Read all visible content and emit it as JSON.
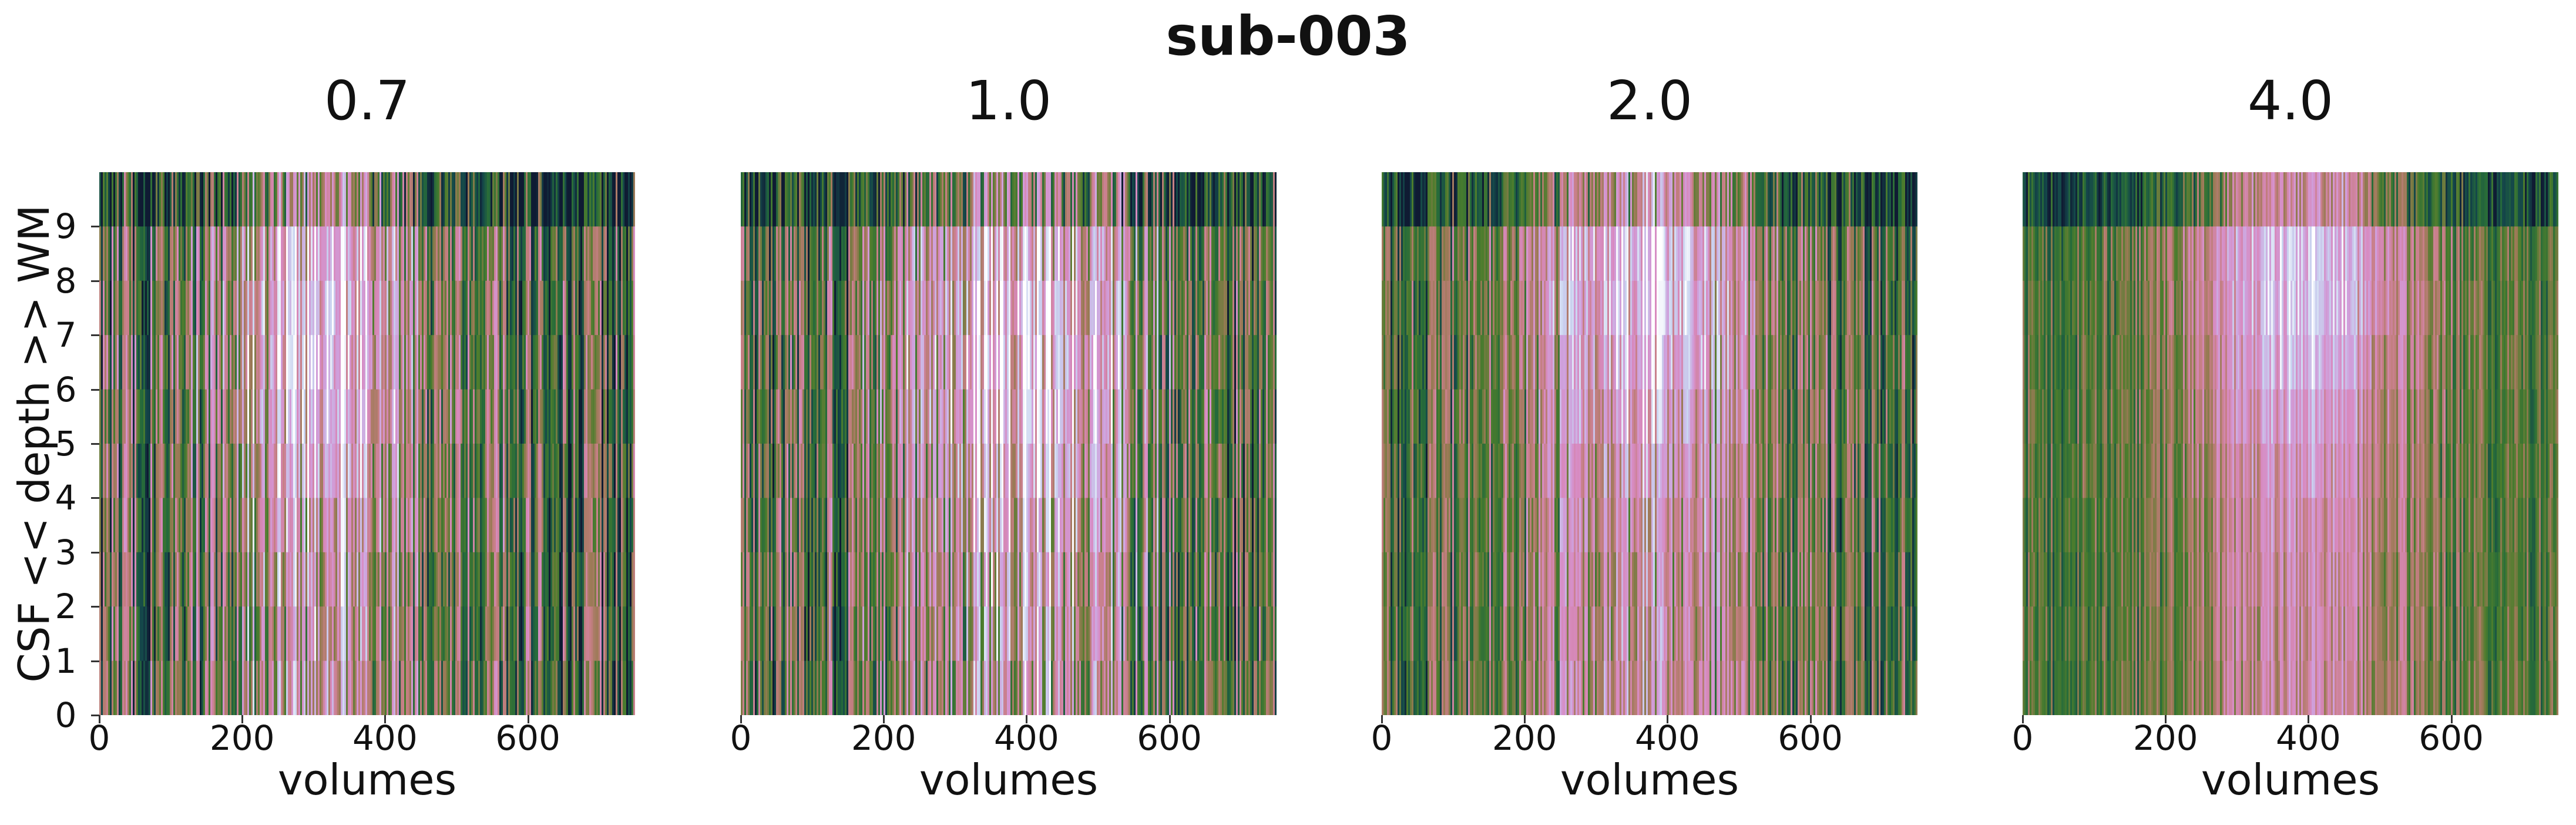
{
  "figure": {
    "title": "sub-003"
  },
  "chart_data": [
    {
      "type": "heatmap",
      "title": "0.7",
      "xlabel": "volumes",
      "ylabel": "CSF << depth >> WM",
      "xlim": [
        0,
        750
      ],
      "ylim": [
        0,
        10
      ],
      "xticks": [
        "0",
        "200",
        "400",
        "600"
      ],
      "yticks": [
        "0",
        "1",
        "2",
        "3",
        "4",
        "5",
        "6",
        "7",
        "8",
        "9"
      ],
      "n_volumes": 750,
      "n_depths": 10,
      "colormap": "cubehelix-like (dark navy → green → pink → lavender → white)",
      "activation_profile": {
        "peak_volume": 310,
        "peak_width": 90,
        "peak_depth": 7,
        "noise_level": "high"
      }
    },
    {
      "type": "heatmap",
      "title": "1.0",
      "xlabel": "volumes",
      "xlim": [
        0,
        750
      ],
      "ylim": [
        0,
        10
      ],
      "xticks": [
        "0",
        "200",
        "400",
        "600"
      ],
      "n_volumes": 750,
      "n_depths": 10,
      "activation_profile": {
        "peak_volume": 400,
        "peak_width": 110,
        "peak_depth": 6.5,
        "noise_level": "high"
      }
    },
    {
      "type": "heatmap",
      "title": "2.0",
      "xlabel": "volumes",
      "xlim": [
        0,
        750
      ],
      "ylim": [
        0,
        10
      ],
      "xticks": [
        "0",
        "200",
        "400",
        "600"
      ],
      "n_volumes": 750,
      "n_depths": 10,
      "activation_profile": {
        "peak_volume": 370,
        "peak_width": 100,
        "peak_depth": 8,
        "noise_level": "medium"
      }
    },
    {
      "type": "heatmap",
      "title": "4.0",
      "xlabel": "volumes",
      "xlim": [
        0,
        750
      ],
      "ylim": [
        0,
        10
      ],
      "xticks": [
        "0",
        "200",
        "400",
        "600"
      ],
      "n_volumes": 750,
      "n_depths": 10,
      "activation_profile": {
        "peak_volume": 390,
        "peak_width": 95,
        "peak_depth": 8,
        "noise_level": "low"
      }
    }
  ],
  "colors": {
    "cmap_stops": [
      "#0f1b33",
      "#14474a",
      "#266b3a",
      "#4d7d2d",
      "#9a7a55",
      "#c77f86",
      "#d88ac0",
      "#cfa0dc",
      "#c9d4f0",
      "#ffffff"
    ]
  }
}
